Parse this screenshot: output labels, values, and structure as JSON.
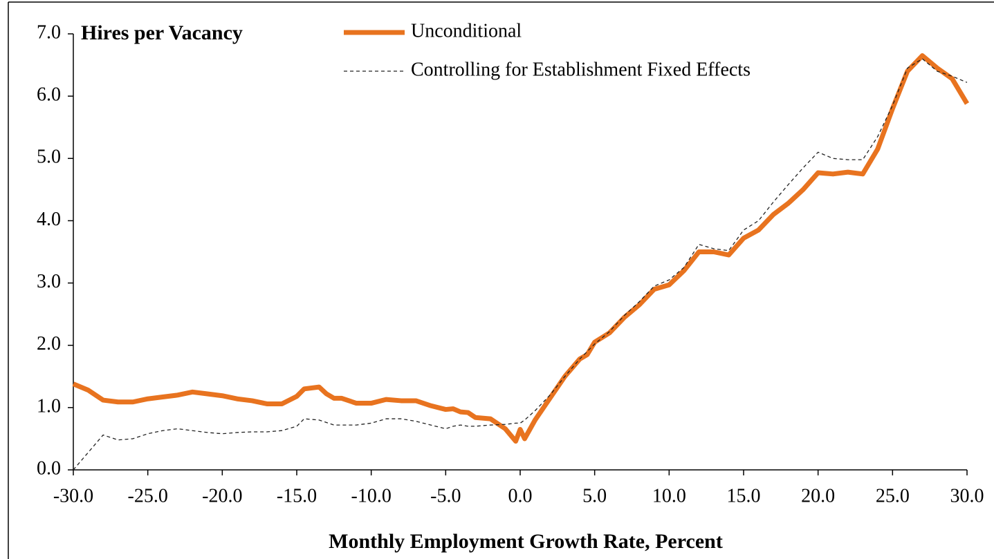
{
  "chart_data": {
    "type": "line",
    "title": "Hires per Vacancy",
    "x_label": "Monthly Employment Growth  Rate, Percent",
    "x": [
      -30,
      -29,
      -28,
      -27,
      -26,
      -25,
      -24,
      -23,
      -22,
      -21,
      -20,
      -19,
      -18,
      -17,
      -16,
      -15,
      -14.5,
      -13.5,
      -13,
      -12.5,
      -12,
      -11,
      -10,
      -9,
      -8,
      -7,
      -6,
      -5,
      -4.5,
      -4,
      -3.5,
      -3,
      -2,
      -1,
      -0.3,
      0,
      0.3,
      1,
      2,
      3,
      4,
      4.5,
      5,
      6,
      7,
      8,
      9,
      10,
      11,
      12,
      13,
      14,
      15,
      16,
      17,
      18,
      19,
      20,
      21,
      22,
      23,
      24,
      25,
      26,
      27,
      28,
      29,
      30
    ],
    "series": [
      {
        "name": "Unconditional",
        "color": "#e8731f",
        "style": "solid",
        "values": [
          1.38,
          1.28,
          1.12,
          1.09,
          1.09,
          1.14,
          1.17,
          1.2,
          1.25,
          1.22,
          1.19,
          1.14,
          1.11,
          1.06,
          1.06,
          1.18,
          1.3,
          1.33,
          1.22,
          1.15,
          1.15,
          1.07,
          1.07,
          1.13,
          1.11,
          1.11,
          1.03,
          0.97,
          0.98,
          0.93,
          0.92,
          0.84,
          0.82,
          0.66,
          0.46,
          0.65,
          0.5,
          0.8,
          1.15,
          1.5,
          1.78,
          1.85,
          2.05,
          2.2,
          2.45,
          2.65,
          2.9,
          2.97,
          3.2,
          3.5,
          3.5,
          3.45,
          3.72,
          3.85,
          4.1,
          4.28,
          4.5,
          4.77,
          4.75,
          4.78,
          4.75,
          5.15,
          5.8,
          6.4,
          6.65,
          6.45,
          6.28,
          5.88
        ]
      },
      {
        "name": "Controlling for Establishment Fixed Effects",
        "color": "#222222",
        "style": "dashed",
        "values": [
          0.0,
          0.28,
          0.56,
          0.48,
          0.5,
          0.58,
          0.63,
          0.66,
          0.63,
          0.6,
          0.58,
          0.6,
          0.61,
          0.61,
          0.63,
          0.7,
          0.82,
          0.8,
          0.76,
          0.72,
          0.72,
          0.72,
          0.75,
          0.82,
          0.82,
          0.78,
          0.72,
          0.66,
          0.7,
          0.72,
          0.7,
          0.7,
          0.72,
          0.73,
          0.75,
          0.75,
          0.8,
          0.95,
          1.2,
          1.5,
          1.78,
          1.9,
          2.02,
          2.22,
          2.48,
          2.7,
          2.95,
          3.05,
          3.25,
          3.62,
          3.55,
          3.52,
          3.85,
          4.0,
          4.3,
          4.58,
          4.85,
          5.1,
          5.0,
          4.98,
          4.98,
          5.35,
          5.85,
          6.45,
          6.6,
          6.4,
          6.32,
          6.22
        ]
      }
    ],
    "xlim": [
      -30,
      30
    ],
    "xticks": [
      {
        "value": -30,
        "label": "-30.0"
      },
      {
        "value": -25,
        "label": "-25.0"
      },
      {
        "value": -20,
        "label": "-20.0"
      },
      {
        "value": -15,
        "label": "-15.0"
      },
      {
        "value": -10,
        "label": "-10.0"
      },
      {
        "value": -5,
        "label": "-5.0"
      },
      {
        "value": 0,
        "label": "0.0"
      },
      {
        "value": 5,
        "label": "5.0"
      },
      {
        "value": 10,
        "label": "10.0"
      },
      {
        "value": 15,
        "label": "15.0"
      },
      {
        "value": 20,
        "label": "20.0"
      },
      {
        "value": 25,
        "label": "25.0"
      },
      {
        "value": 30,
        "label": "30.0"
      }
    ],
    "ylim": [
      0,
      7
    ],
    "yticks": [
      {
        "value": 0,
        "label": "0.0"
      },
      {
        "value": 1,
        "label": "1.0"
      },
      {
        "value": 2,
        "label": "2.0"
      },
      {
        "value": 3,
        "label": "3.0"
      },
      {
        "value": 4,
        "label": "4.0"
      },
      {
        "value": 5,
        "label": "5.0"
      },
      {
        "value": 6,
        "label": "6.0"
      },
      {
        "value": 7,
        "label": "7.0"
      }
    ],
    "grid": false,
    "legend": "top"
  }
}
